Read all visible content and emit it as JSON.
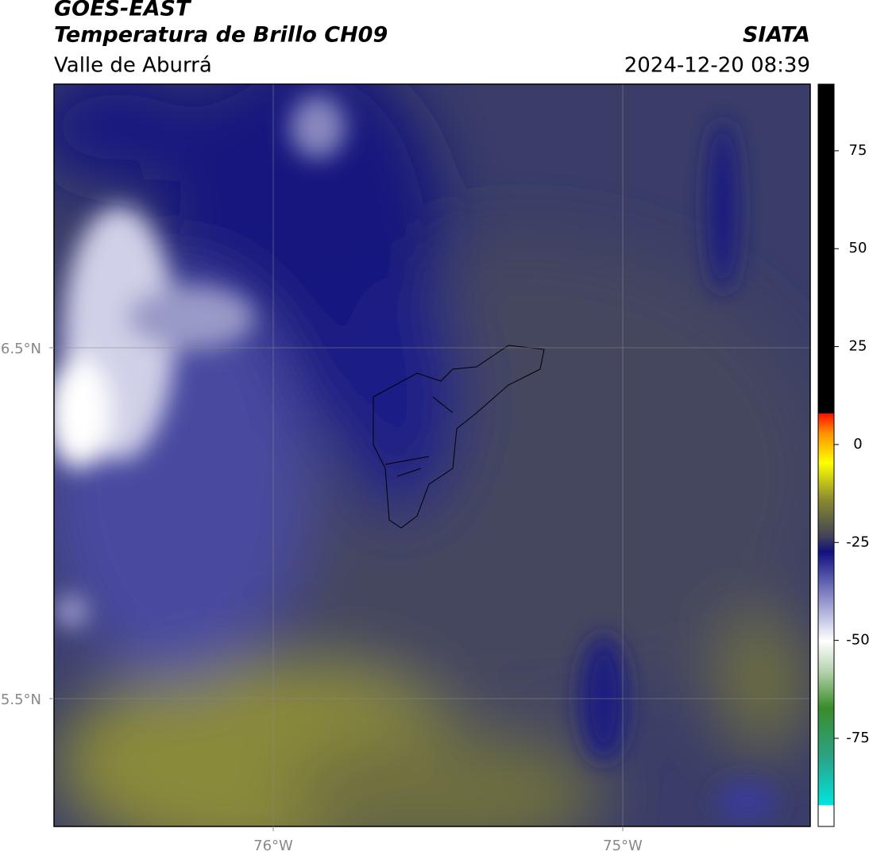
{
  "header": {
    "title": "GOES-EAST",
    "subtitle": "Temperatura de Brillo CH09",
    "source": "SIATA",
    "region": "Valle de Aburrá",
    "datetime": "2024-12-20 08:39"
  },
  "map": {
    "lat_ticks": [
      "6.5°N",
      "5.5°N"
    ],
    "lon_ticks": [
      "76°W",
      "75°W"
    ]
  },
  "colorbar": {
    "lim": [
      -97.5,
      92
    ],
    "ticks": [
      75,
      50,
      25,
      0,
      -25,
      -50,
      -75
    ]
  }
}
